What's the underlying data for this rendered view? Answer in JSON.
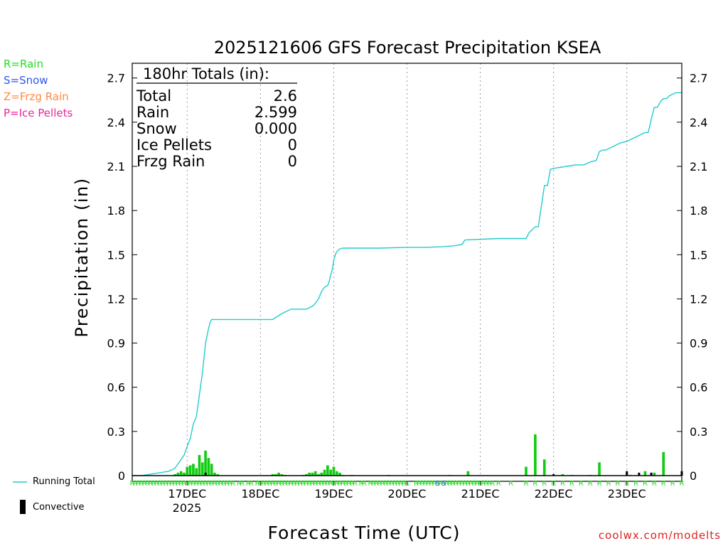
{
  "chart_data": {
    "type": "bar+line",
    "title": "2025121606 GFS Forecast Precipitation KSEA",
    "xlabel": "Forecast Time (UTC)",
    "ylabel": "Precipitation (in)",
    "ylim": [
      0,
      2.8
    ],
    "yticks": [
      "0",
      "0.3",
      "0.6",
      "0.9",
      "1.2",
      "1.5",
      "1.8",
      "2.1",
      "2.4",
      "2.7"
    ],
    "xlim_hours": [
      0,
      180
    ],
    "day_labels": [
      {
        "label": "17DEC",
        "hour": 18
      },
      {
        "label": "18DEC",
        "hour": 42
      },
      {
        "label": "19DEC",
        "hour": 66
      },
      {
        "label": "20DEC",
        "hour": 90
      },
      {
        "label": "21DEC",
        "hour": 114
      },
      {
        "label": "22DEC",
        "hour": 138
      },
      {
        "label": "23DEC",
        "hour": 162
      }
    ],
    "year_label": "2025",
    "totals_box": {
      "heading": "180hr Totals (in):",
      "rows": [
        {
          "label": "Total",
          "value": "2.6"
        },
        {
          "label": "Rain",
          "value": "2.599"
        },
        {
          "label": "Snow",
          "value": "0.000"
        },
        {
          "label": "Ice Pellets",
          "value": "0"
        },
        {
          "label": "Frzg Rain",
          "value": "0"
        }
      ]
    },
    "type_legend": [
      {
        "text": "R=Rain",
        "color": "#22dd22"
      },
      {
        "text": "S=Snow",
        "color": "#3355ee"
      },
      {
        "text": "Z=Frzg Rain",
        "color": "#ff8844"
      },
      {
        "text": "P=Ice Pellets",
        "color": "#ee2299"
      }
    ],
    "series_legend": {
      "running_total": "Running Total",
      "convective": "Convective"
    },
    "running_total": {
      "name": "Running Total",
      "color": "#22cccc",
      "x": [
        0,
        3,
        6,
        9,
        12,
        14,
        15,
        16,
        17,
        18,
        19,
        19.5,
        20,
        21,
        22,
        23,
        24,
        25,
        25.5,
        26,
        26.5,
        27,
        42,
        46,
        49,
        52,
        55,
        57,
        58,
        59,
        60,
        61,
        62,
        63,
        64,
        64.5,
        65,
        65.5,
        66,
        66.5,
        67,
        68,
        69,
        81,
        90,
        96,
        102,
        105,
        108,
        109,
        120,
        129,
        130,
        132,
        133,
        135,
        136,
        137,
        138,
        139,
        141,
        142,
        144,
        145,
        148,
        150,
        152,
        153,
        154,
        155,
        157,
        159,
        160,
        162,
        163,
        164,
        165,
        166,
        167,
        168,
        169,
        170,
        171,
        172,
        173,
        174,
        175,
        176,
        177,
        178,
        180
      ],
      "values": [
        0,
        0,
        0.01,
        0.02,
        0.03,
        0.05,
        0.08,
        0.11,
        0.14,
        0.2,
        0.25,
        0.3,
        0.35,
        0.4,
        0.55,
        0.7,
        0.9,
        1.0,
        1.04,
        1.06,
        1.06,
        1.06,
        1.06,
        1.06,
        1.1,
        1.13,
        1.13,
        1.13,
        1.14,
        1.15,
        1.17,
        1.2,
        1.25,
        1.28,
        1.29,
        1.32,
        1.36,
        1.4,
        1.46,
        1.5,
        1.52,
        1.54,
        1.545,
        1.545,
        1.55,
        1.55,
        1.555,
        1.56,
        1.57,
        1.6,
        1.61,
        1.61,
        1.65,
        1.69,
        1.69,
        1.97,
        1.97,
        2.08,
        2.085,
        2.09,
        2.095,
        2.1,
        2.105,
        2.11,
        2.11,
        2.13,
        2.14,
        2.2,
        2.21,
        2.21,
        2.23,
        2.25,
        2.26,
        2.27,
        2.28,
        2.29,
        2.3,
        2.31,
        2.32,
        2.33,
        2.33,
        2.42,
        2.5,
        2.5,
        2.54,
        2.56,
        2.56,
        2.58,
        2.59,
        2.6,
        2.6
      ]
    },
    "precip_bars": {
      "name": "Precipitation",
      "color": "#11cc11",
      "hours": [
        14,
        15,
        16,
        17,
        18,
        19,
        20,
        21,
        22,
        23,
        24,
        25,
        26,
        27,
        28,
        46,
        47,
        48,
        49,
        50,
        56,
        57,
        58,
        59,
        60,
        61,
        62,
        63,
        64,
        65,
        66,
        67,
        68,
        69,
        72,
        84,
        104,
        110,
        129,
        132,
        135,
        141,
        144,
        150,
        153,
        163,
        168,
        171,
        174
      ],
      "values": [
        0.01,
        0.02,
        0.03,
        0.02,
        0.06,
        0.07,
        0.08,
        0.05,
        0.14,
        0.09,
        0.17,
        0.12,
        0.08,
        0.02,
        0.01,
        0.01,
        0.01,
        0.02,
        0.01,
        0.005,
        0.005,
        0.01,
        0.02,
        0.02,
        0.03,
        0.01,
        0.02,
        0.04,
        0.07,
        0.04,
        0.06,
        0.03,
        0.02,
        0.005,
        0.005,
        0.005,
        0.005,
        0.03,
        0.06,
        0.28,
        0.11,
        0.01,
        0.005,
        0.005,
        0.09,
        0.005,
        0.03,
        0.02,
        0.16
      ]
    },
    "convective_bars": {
      "name": "Convective",
      "color": "#000000",
      "hours": [
        24,
        138,
        162,
        166,
        170,
        180
      ],
      "values": [
        0.02,
        0.01,
        0.03,
        0.02,
        0.02,
        0.03
      ]
    },
    "type_strip": {
      "rain_marker": "R",
      "snow_marker": "S",
      "rain_hours": [
        0,
        1,
        2,
        3,
        4,
        5,
        6,
        7,
        8,
        9,
        10,
        11,
        12,
        13,
        14,
        15,
        16,
        17,
        18,
        19,
        20,
        21,
        22,
        23,
        24,
        25,
        26,
        27,
        28,
        29,
        30,
        31,
        32,
        33,
        35,
        36,
        38,
        39,
        41,
        42,
        43,
        44,
        45,
        46,
        47,
        48,
        49,
        50,
        51,
        52,
        53,
        54,
        55,
        56,
        57,
        58,
        59,
        60,
        61,
        62,
        63,
        64,
        65,
        66,
        67,
        68,
        69,
        70,
        71,
        72,
        73,
        75,
        76,
        78,
        79,
        80,
        81,
        82,
        83,
        84,
        85,
        86,
        87,
        88,
        89,
        90,
        93,
        94,
        95,
        96,
        97,
        98,
        99,
        100,
        101,
        102,
        103,
        104,
        105,
        106,
        107,
        108,
        109,
        110,
        111,
        112,
        113,
        114,
        115,
        116,
        117,
        118,
        120,
        124,
        129,
        132,
        135,
        138,
        141,
        144,
        147,
        150,
        153,
        156,
        159,
        162,
        165,
        168,
        171,
        174,
        177,
        180
      ],
      "snow_hours": [
        100,
        102
      ]
    },
    "credit": "coolwx.com/modelts"
  }
}
